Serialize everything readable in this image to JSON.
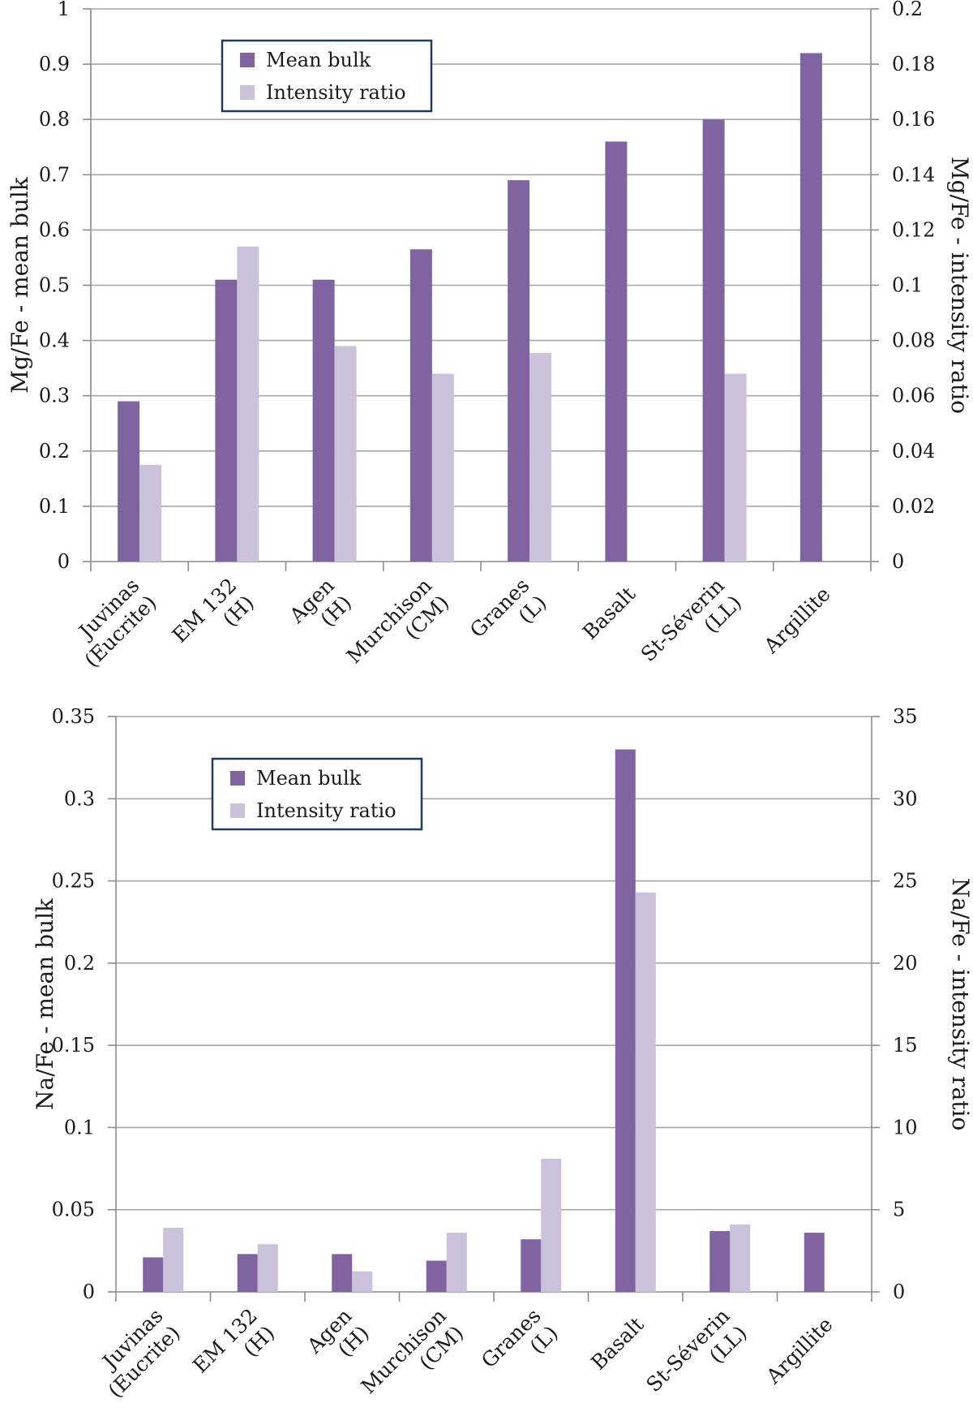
{
  "chart_data": [
    {
      "type": "bar",
      "categories": [
        [
          "Juvinas",
          "(Eucrite)"
        ],
        [
          "EM 132",
          "(H)"
        ],
        [
          "Agen",
          "(H)"
        ],
        [
          "Murchison",
          "(CM)"
        ],
        [
          "Granes",
          "(L)"
        ],
        [
          "Basalt"
        ],
        [
          "St-Séverin",
          "(LL)"
        ],
        [
          "Argillite"
        ]
      ],
      "series": [
        {
          "name": "Mean bulk",
          "axis": "left",
          "color": "#8064a2",
          "values": [
            0.29,
            0.51,
            0.51,
            0.565,
            0.69,
            0.76,
            0.8,
            0.92
          ]
        },
        {
          "name": "Intensity ratio",
          "axis": "right",
          "color": "#ccc1da",
          "values": [
            0.035,
            0.114,
            0.078,
            0.068,
            0.0755,
            null,
            0.068,
            null
          ]
        }
      ],
      "ylabel": "Mg/Fe - mean bulk",
      "y2label": "Mg/Fe - intensity ratio",
      "ylim": [
        0,
        1
      ],
      "y2lim": [
        0,
        0.2
      ],
      "yticks": [
        "0",
        "0.1",
        "0.2",
        "0.3",
        "0.4",
        "0.5",
        "0.6",
        "0.7",
        "0.8",
        "0.9",
        "1"
      ],
      "y2ticks": [
        "0",
        "0.02",
        "0.04",
        "0.06",
        "0.08",
        "0.1",
        "0.12",
        "0.14",
        "0.16",
        "0.18",
        "0.2"
      ],
      "grid": true,
      "legend": "top-left"
    },
    {
      "type": "bar",
      "categories": [
        [
          "Juvinas",
          "(Eucrite)"
        ],
        [
          "EM 132",
          "(H)"
        ],
        [
          "Agen",
          "(H)"
        ],
        [
          "Murchison",
          "(CM)"
        ],
        [
          "Granes",
          "(L)"
        ],
        [
          "Basalt"
        ],
        [
          "St-Séverin",
          "(LL)"
        ],
        [
          "Argillite"
        ]
      ],
      "series": [
        {
          "name": "Mean bulk",
          "axis": "left",
          "color": "#8064a2",
          "values": [
            0.021,
            0.023,
            0.023,
            0.019,
            0.032,
            0.33,
            0.037,
            0.036
          ]
        },
        {
          "name": "Intensity ratio",
          "axis": "right",
          "color": "#ccc1da",
          "values": [
            3.9,
            2.9,
            1.25,
            3.6,
            8.1,
            24.3,
            4.1,
            null
          ]
        }
      ],
      "ylabel": "Na/Fe - mean bulk",
      "y2label": "Na/Fe - intensity ratio",
      "ylim": [
        0,
        0.35
      ],
      "y2lim": [
        0,
        35
      ],
      "yticks": [
        "0",
        "0.05",
        "0.1",
        "0.15",
        "0.2",
        "0.25",
        "0.3",
        "0.35"
      ],
      "y2ticks": [
        "0",
        "5",
        "10",
        "15",
        "20",
        "25",
        "30",
        "35"
      ],
      "grid": true,
      "legend": "top-left"
    }
  ]
}
